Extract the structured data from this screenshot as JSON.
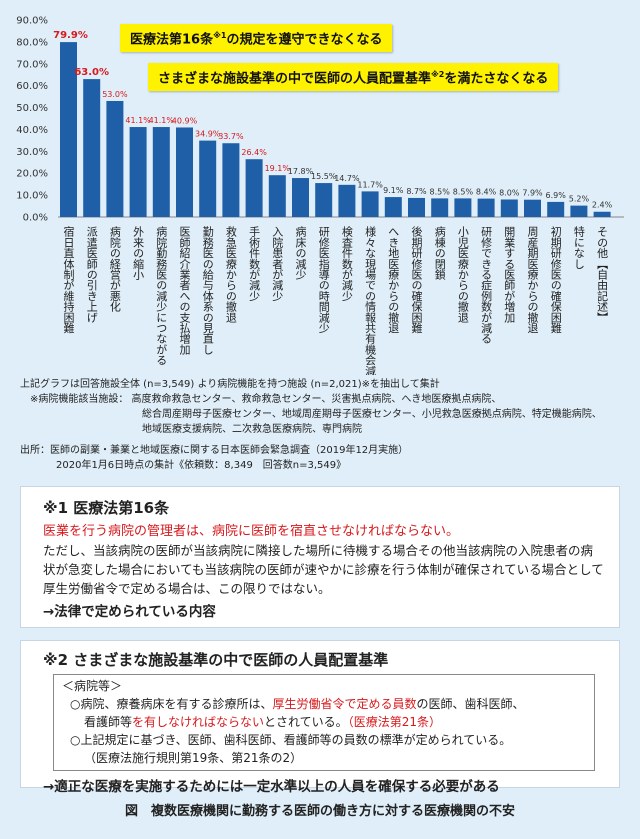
{
  "chart_data": {
    "type": "bar",
    "ylim": [
      0,
      90
    ],
    "y_ticks": [
      "0.0%",
      "10.0%",
      "20.0%",
      "30.0%",
      "40.0%",
      "50.0%",
      "60.0%",
      "70.0%",
      "80.0%",
      "90.0%"
    ],
    "bar_color": "#1f5fa8",
    "highlight_label_color": "#d7191c",
    "categories": [
      "宿日直体制が維持困難",
      "派遣医師の引き上げ",
      "病院の経営が悪化",
      "外来の縮小",
      "病院勤務医の減少につながる",
      "医師紹介業者への支払増加",
      "勤務医の給与体系の見直し",
      "救急医療からの撤退",
      "手術件数が減少",
      "入院患者が減少",
      "病床の減少",
      "研修医指導の時間減少",
      "検査件数が減少",
      "様々な現場での情報共有機会減少",
      "へき地医療からの撤退",
      "後期研修医の確保困難",
      "病棟の閉鎖",
      "小児医療からの撤退",
      "研修できる症例数が減る",
      "開業する医師が増加",
      "周産期医療からの撤退",
      "初期研修医の確保困難",
      "特になし",
      "その他【自由記述】"
    ],
    "values": [
      79.9,
      63.0,
      53.0,
      41.1,
      41.1,
      40.9,
      34.9,
      33.7,
      26.4,
      19.1,
      17.8,
      15.5,
      14.7,
      11.7,
      9.1,
      8.7,
      8.5,
      8.5,
      8.4,
      8.0,
      7.9,
      6.9,
      5.2,
      2.4
    ],
    "value_labels": [
      "79.9%",
      "63.0%",
      "53.0%",
      "41.1%",
      "41.1%",
      "40.9%",
      "34.9%",
      "33.7%",
      "26.4%",
      "19.1%",
      "17.8%",
      "15.5%",
      "14.7%",
      "11.7%",
      "9.1%",
      "8.7%",
      "8.5%",
      "8.5%",
      "8.4%",
      "8.0%",
      "7.9%",
      "6.9%",
      "5.2%",
      "2.4%"
    ],
    "highlighted": [
      true,
      true,
      true,
      true,
      true,
      true,
      true,
      true,
      true,
      true,
      false,
      false,
      false,
      false,
      false,
      false,
      false,
      false,
      false,
      false,
      false,
      false,
      false,
      false
    ],
    "callouts": [
      {
        "text_a": "医療法第16条",
        "sup": "※1",
        "text_b": "の規定を遵守できなくなる"
      },
      {
        "text_a": "さまざまな施設基準の中で医師の人員配置基準",
        "sup": "※2",
        "text_b": "を満たさなくなる"
      }
    ]
  },
  "notes": {
    "line1": "上記グラフは回答施設全体 (n=3,549) より病院機能を持つ施設 (n=2,021)※を抽出して集計",
    "line2": "※病院機能該当施設：  高度救命救急センター、救命救急センター、災害拠点病院、へき地医療拠点病院、",
    "line3": "総合周産期母子医療センター、地域周産期母子医療センター、小児救急医療拠点病院、特定機能病院、",
    "line4": "地域医療支援病院、二次救急医療病院、専門病院",
    "source1": "出所：医師の副業・兼業と地域医療に関する日本医師会緊急調査（2019年12月実施）",
    "source2": "2020年1月6日時点の集計《依頼数：8,349　回答数n=3,549》"
  },
  "box1": {
    "title": "※1  医療法第16条",
    "red_line": "医業を行う病院の管理者は、病院に医師を宿直させなければならない。",
    "body": "ただし、当該病院の医師が当該病院に隣接した場所に待機する場合その他当該病院の入院患者の病状が急変した場合においても当該病院の医師が速やかに診療を行う体制が確保されている場合として厚生労働省令で定める場合は、この限りではない。",
    "conclusion": "→法律で定められている内容"
  },
  "box2": {
    "title": "※2  さまざまな施設基準の中で医師の人員配置基準",
    "inner_head": "＜病院等＞",
    "item1_a": "○病院、療養病床を有する診療所は、",
    "item1_red1": "厚生労働省令で定める員数",
    "item1_b": "の医師、歯科医師、",
    "item1_c": "看護師等",
    "item1_red2": "を有しなければならない",
    "item1_d": "とされている。",
    "item1_red3": "（医療法第21条）",
    "item2_a": "○上記規定に基づき、医師、歯科医師、看護師等の員数の標準が定められている。",
    "item2_b": "（医療法施行規則第19条、第21条の2）",
    "conclusion": "→適正な医療を実施するためには一定水準以上の人員を確保する必要がある"
  },
  "caption": "図　複数医療機関に勤務する医師の働き方に対する医療機関の不安"
}
